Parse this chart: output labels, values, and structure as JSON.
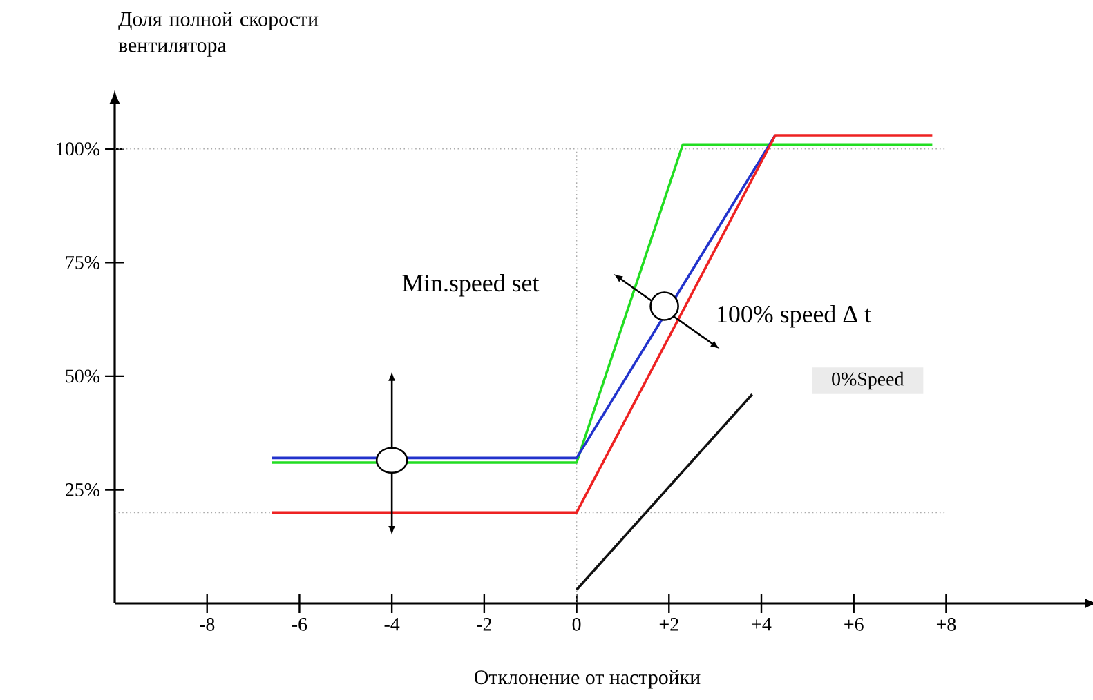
{
  "chart_data": {
    "type": "line",
    "ylabel": "Доля полной скорости вентилятора",
    "xlabel": "Отклонение от настройки",
    "series": [
      {
        "color": "#22dd22",
        "x": [
          -6.6,
          0,
          2.3,
          7.7
        ],
        "values": [
          31,
          31,
          101,
          101
        ]
      },
      {
        "color": "#2233cc",
        "x": [
          -6.6,
          0,
          4.3
        ],
        "values": [
          32,
          32,
          103
        ]
      },
      {
        "color": "#ee2222",
        "x": [
          -6.6,
          0,
          4.3,
          7.7
        ],
        "values": [
          20,
          20,
          103,
          103
        ]
      },
      {
        "color": "#111111",
        "x": [
          0,
          3.8
        ],
        "values": [
          3,
          46
        ]
      }
    ],
    "xlim": [
      -10,
      11
    ],
    "ylim": [
      0,
      110
    ],
    "xticks": [
      -8,
      -6,
      -4,
      -2,
      0,
      {
        "value": 2,
        "label": "+2"
      },
      {
        "value": 4,
        "label": "+4"
      },
      {
        "value": 6,
        "label": "+6"
      },
      {
        "value": 8,
        "label": "+8"
      }
    ],
    "yticks": [
      {
        "value": 25,
        "label": "25%"
      },
      {
        "value": 50,
        "label": "50%"
      },
      {
        "value": 75,
        "label": "75%"
      },
      {
        "value": 100,
        "label": "100%"
      }
    ],
    "ref_lines": [
      {
        "axis": "y",
        "value": 100,
        "color": "#aaaaaa",
        "line_style": "dotted"
      },
      {
        "axis": "y",
        "value": 20,
        "color": "#aaaaaa",
        "line_style": "dotted"
      },
      {
        "axis": "x",
        "value": 0,
        "color": "#aaaaaa",
        "line_style": "dotted"
      }
    ],
    "annotations": [
      "Min.speed set",
      {
        "text": "100% speed Δ t",
        "x": 1.9,
        "y": 65
      },
      "0%Speed"
    ],
    "grid": false,
    "marker": "none",
    "line_style": "solid"
  }
}
